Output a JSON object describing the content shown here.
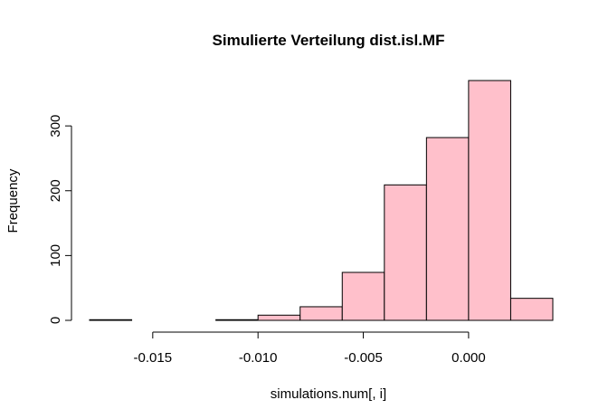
{
  "chart_data": {
    "type": "bar",
    "title": "Simulierte Verteilung dist.isl.MF",
    "xlabel": "simulations.num[, i]",
    "ylabel": "Frequency",
    "bar_color": "#ffc0cb",
    "bins": [
      {
        "start": -0.018,
        "end": -0.016,
        "count": 1
      },
      {
        "start": -0.016,
        "end": -0.014,
        "count": 0
      },
      {
        "start": -0.014,
        "end": -0.012,
        "count": 0
      },
      {
        "start": -0.012,
        "end": -0.01,
        "count": 1
      },
      {
        "start": -0.01,
        "end": -0.008,
        "count": 8
      },
      {
        "start": -0.008,
        "end": -0.006,
        "count": 21
      },
      {
        "start": -0.006,
        "end": -0.004,
        "count": 74
      },
      {
        "start": -0.004,
        "end": -0.002,
        "count": 209
      },
      {
        "start": -0.002,
        "end": 0.0,
        "count": 282
      },
      {
        "start": 0.0,
        "end": 0.002,
        "count": 370
      },
      {
        "start": 0.002,
        "end": 0.004,
        "count": 34
      }
    ],
    "x_ticks": [
      {
        "value": -0.015,
        "label": "-0.015"
      },
      {
        "value": -0.01,
        "label": "-0.010"
      },
      {
        "value": -0.005,
        "label": "-0.005"
      },
      {
        "value": 0.0,
        "label": "0.000"
      }
    ],
    "y_ticks": [
      {
        "value": 0,
        "label": "0"
      },
      {
        "value": 100,
        "label": "100"
      },
      {
        "value": 200,
        "label": "200"
      },
      {
        "value": 300,
        "label": "300"
      }
    ],
    "xlim": [
      -0.018,
      0.004
    ],
    "ylim": [
      0,
      370
    ],
    "grid": false,
    "legend": "none"
  }
}
